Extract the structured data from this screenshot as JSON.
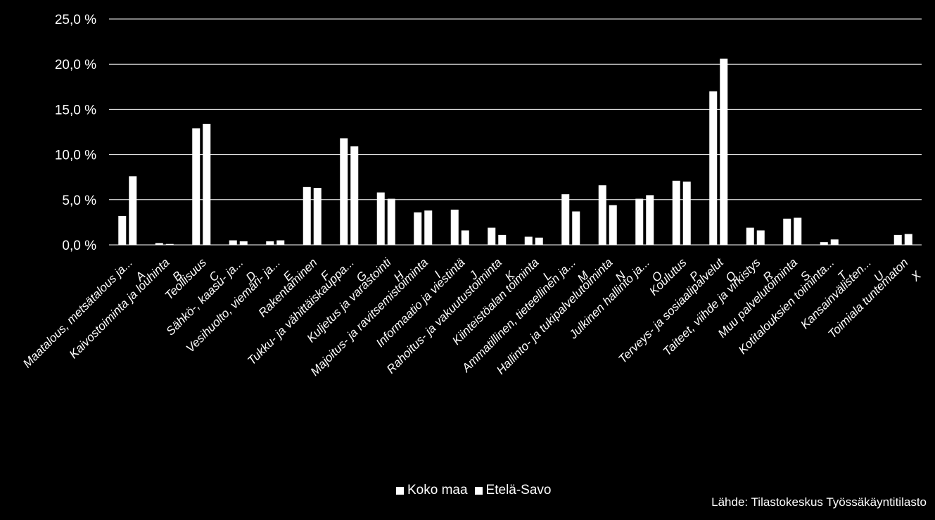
{
  "chart_data": {
    "type": "bar",
    "categories": [
      "A Maatalous, metsätalous ja...",
      "B Kaivostoiminta ja louhinta",
      "C Teollisuus",
      "D Sähkö-, kaasu- ja...",
      "E Vesihuolto, viemäri- ja...",
      "F Rakentaminen",
      "G Tukku- ja vähittäiskauppa...",
      "H Kuljetus ja varastointi",
      "I Majoitus- ja ravitsemistoiminta",
      "J Informaatio ja viestintä",
      "K Rahoitus- ja vakuutustoiminta",
      "L Kiinteistöalan toiminta",
      "M Ammatillinen, tieteellinen ja...",
      "N Hallinto- ja tukipalvelutoiminta",
      "O Julkinen hallinto ja...",
      "P Koulutus",
      "Q Terveys- ja sosiaalipalvelut",
      "R Taiteet, viihde ja virkistys",
      "S Muu palvelutoiminta",
      "T Kotitalouksien toiminta...",
      "U Kansainvälisten...",
      "X Toimiala tuntematon"
    ],
    "category_lines": [
      [
        "A",
        "Maatalous, metsätalous ja..."
      ],
      [
        "B",
        "Kaivostoiminta ja louhinta"
      ],
      [
        "C",
        "Teollisuus"
      ],
      [
        "D",
        "Sähkö-, kaasu- ja..."
      ],
      [
        "E",
        "Vesihuolto, viemäri- ja..."
      ],
      [
        "F",
        "Rakentaminen"
      ],
      [
        "G",
        "Tukku- ja vähittäiskauppa..."
      ],
      [
        "H",
        "Kuljetus ja varastointi"
      ],
      [
        "I",
        "Majoitus- ja ravitsemistoiminta"
      ],
      [
        "J",
        "Informaatio ja viestintä"
      ],
      [
        "K",
        "Rahoitus- ja vakuutustoiminta"
      ],
      [
        "L",
        "Kiinteistöalan toiminta"
      ],
      [
        "M",
        "Ammatillinen, tieteellinen ja..."
      ],
      [
        "N",
        "Hallinto- ja tukipalvelutoiminta"
      ],
      [
        "O",
        "Julkinen hallinto ja..."
      ],
      [
        "P",
        "Koulutus"
      ],
      [
        "Q",
        "Terveys- ja sosiaalipalvelut"
      ],
      [
        "R",
        "Taiteet, viihde ja virkistys"
      ],
      [
        "S",
        "Muu palvelutoiminta"
      ],
      [
        "T",
        "Kotitalouksien toiminta..."
      ],
      [
        "U",
        "Kansainvälisten..."
      ],
      [
        "X",
        "Toimiala tuntematon"
      ]
    ],
    "series": [
      {
        "name": "Koko maa",
        "values": [
          3.2,
          0.2,
          12.9,
          0.5,
          0.4,
          6.4,
          11.8,
          5.8,
          3.6,
          3.9,
          1.9,
          0.9,
          5.6,
          6.6,
          5.1,
          7.1,
          17.0,
          1.9,
          2.9,
          0.3,
          0.0,
          1.1
        ]
      },
      {
        "name": "Etelä-Savo",
        "values": [
          7.6,
          0.1,
          13.4,
          0.4,
          0.5,
          6.3,
          10.9,
          5.1,
          3.8,
          1.6,
          1.1,
          0.8,
          3.7,
          4.4,
          5.5,
          7.0,
          20.6,
          1.6,
          3.0,
          0.6,
          0.0,
          1.2
        ]
      }
    ],
    "ylim": [
      0,
      25
    ],
    "yticks": [
      0,
      5,
      10,
      15,
      20,
      25
    ],
    "ytick_labels": [
      "0,0 %",
      "5,0 %",
      "10,0 %",
      "15,0 %",
      "20,0 %",
      "25,0 %"
    ],
    "title": "",
    "xlabel": "",
    "ylabel": "",
    "grid": true,
    "legend_position": "bottom",
    "colors": {
      "background": "#000000",
      "bars": "#ffffff",
      "gridlines": "#ffffff",
      "text": "#ffffff"
    }
  },
  "legend": {
    "items": [
      "Koko maa",
      "Etelä-Savo"
    ]
  },
  "source_text": "Lähde: Tilastokeskus Työssäkäyntitilasto"
}
